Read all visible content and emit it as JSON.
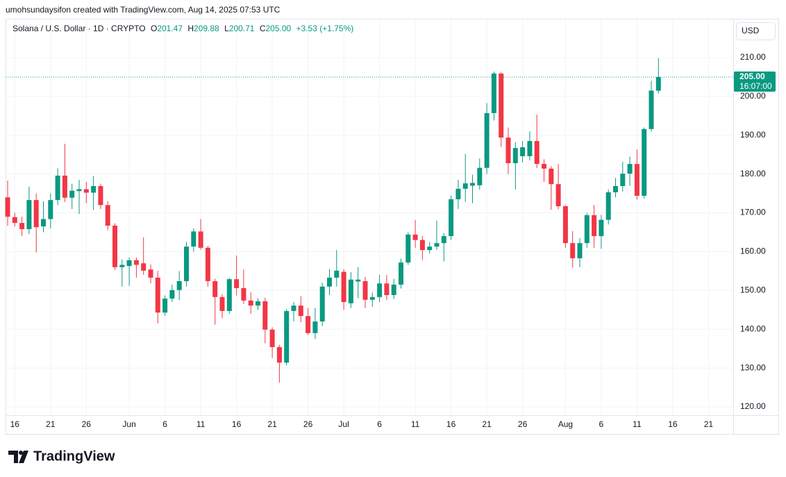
{
  "header": "umohsundaysifon created with TradingView.com, Aug 14, 2025 07:53 UTC",
  "legend": {
    "symbol": "Solana / U.S. Dollar · 1D · CRYPTO",
    "open_label": "O",
    "open": "201.47",
    "high_label": "H",
    "high": "209.88",
    "low_label": "L",
    "low": "200.71",
    "close_label": "C",
    "close": "205.00",
    "change": "+3.53 (+1.75%)"
  },
  "currency": "USD",
  "price_tag": {
    "price": "205.00",
    "countdown": "16:07:00"
  },
  "logo": "TradingView",
  "chart_data": {
    "type": "candlestick",
    "x": [
      "May 15",
      "May 16",
      "May 17",
      "May 18",
      "May 19",
      "May 20",
      "May 21",
      "May 22",
      "May 23",
      "May 24",
      "May 25",
      "May 26",
      "May 27",
      "May 28",
      "May 29",
      "May 30",
      "May 31",
      "Jun 1",
      "Jun 2",
      "Jun 3",
      "Jun 4",
      "Jun 5",
      "Jun 6",
      "Jun 7",
      "Jun 8",
      "Jun 9",
      "Jun 10",
      "Jun 11",
      "Jun 12",
      "Jun 13",
      "Jun 14",
      "Jun 15",
      "Jun 16",
      "Jun 17",
      "Jun 18",
      "Jun 19",
      "Jun 20",
      "Jun 21",
      "Jun 22",
      "Jun 23",
      "Jun 24",
      "Jun 25",
      "Jun 26",
      "Jun 27",
      "Jun 28",
      "Jun 29",
      "Jun 30",
      "Jul 1",
      "Jul 2",
      "Jul 3",
      "Jul 4",
      "Jul 5",
      "Jul 6",
      "Jul 7",
      "Jul 8",
      "Jul 9",
      "Jul 10",
      "Jul 11",
      "Jul 12",
      "Jul 13",
      "Jul 14",
      "Jul 15",
      "Jul 16",
      "Jul 17",
      "Jul 18",
      "Jul 19",
      "Jul 20",
      "Jul 21",
      "Jul 22",
      "Jul 23",
      "Jul 24",
      "Jul 25",
      "Jul 26",
      "Jul 27",
      "Jul 28",
      "Jul 29",
      "Jul 30",
      "Jul 31",
      "Aug 1",
      "Aug 2",
      "Aug 3",
      "Aug 4",
      "Aug 5",
      "Aug 6",
      "Aug 7",
      "Aug 8",
      "Aug 9",
      "Aug 10",
      "Aug 11",
      "Aug 12",
      "Aug 13",
      "Aug 14"
    ],
    "open": [
      174.0,
      168.9,
      167.4,
      165.8,
      173.3,
      166.5,
      168.4,
      173.3,
      179.6,
      173.9,
      175.6,
      176.1,
      175.2,
      176.9,
      172.0,
      166.7,
      156.0,
      156.3,
      157.8,
      157.0,
      155.4,
      153.3,
      144.3,
      147.9,
      150.1,
      152.4,
      161.3,
      165.2,
      161.0,
      152.4,
      148.3,
      144.7,
      152.9,
      150.6,
      147.4,
      146.1,
      147.2,
      139.9,
      135.4,
      131.4,
      144.7,
      146.1,
      143.4,
      139.0,
      142.0,
      151.0,
      153.3,
      154.8,
      146.7,
      152.3,
      152.4,
      147.6,
      148.3,
      151.8,
      148.8,
      151.5,
      157.2,
      164.4,
      163.0,
      160.4,
      161.3,
      162.2,
      164.0,
      173.5,
      176.2,
      177.0,
      177.1,
      181.6,
      195.7,
      205.9,
      189.4,
      182.8,
      184.6,
      184.6,
      188.5,
      182.6,
      181.4,
      177.4,
      171.7,
      162.2,
      158.3,
      162.2,
      169.4,
      164.0,
      168.2,
      175.3,
      176.9,
      180.1,
      182.6,
      174.4,
      191.6,
      201.47
    ],
    "high": [
      178.3,
      170,
      169,
      176.8,
      175,
      173,
      175,
      181.5,
      187.8,
      177.5,
      178.5,
      178,
      179.5,
      177.5,
      173,
      167.3,
      158,
      158.5,
      158.5,
      163.7,
      156.7,
      155,
      148.7,
      151.5,
      155,
      162.5,
      166,
      168.4,
      161.5,
      153,
      149,
      153.3,
      159,
      155.4,
      149.5,
      148,
      148.1,
      140.5,
      136,
      145.2,
      147,
      148.5,
      145.5,
      145.5,
      152,
      155.5,
      160.4,
      155.5,
      154.7,
      156,
      153.5,
      149.5,
      154,
      154,
      153,
      158.2,
      165,
      168.2,
      164,
      162.5,
      168,
      164.8,
      174.5,
      178.5,
      185.2,
      179.8,
      184,
      198.3,
      206.4,
      206.2,
      192,
      188.2,
      188.5,
      191,
      195.3,
      183.8,
      182,
      182.6,
      172,
      165.3,
      163.5,
      170,
      172,
      169.5,
      176,
      179,
      183.2,
      184.5,
      186.3,
      192,
      204,
      209.88
    ],
    "low": [
      166.7,
      166.5,
      164,
      164.5,
      159.8,
      165,
      166,
      172,
      172.8,
      171,
      169.7,
      172.5,
      170.7,
      171,
      165.5,
      155.3,
      151,
      151.2,
      153.3,
      154,
      151.8,
      141.5,
      143.5,
      147,
      147.5,
      151,
      160,
      160.5,
      151,
      141.2,
      142.8,
      144,
      148.7,
      146.5,
      144,
      145,
      136.4,
      132.6,
      126.3,
      130.7,
      142,
      141.8,
      138.5,
      137.5,
      140.8,
      148.8,
      151,
      145,
      145.5,
      148,
      145.5,
      145.8,
      147,
      147.5,
      147.8,
      150.5,
      156.6,
      161,
      157.8,
      159.5,
      160.5,
      157.5,
      163,
      171,
      172.8,
      172.5,
      176,
      180,
      193.8,
      187,
      180,
      176,
      183,
      183.5,
      181.5,
      178,
      170.8,
      170.9,
      161,
      155.9,
      156,
      161,
      161,
      160.7,
      167,
      174,
      175.5,
      177,
      173.4,
      173.7,
      191,
      200.71
    ],
    "close": [
      169.0,
      167.4,
      165.8,
      173.3,
      166.3,
      168.4,
      173.3,
      179.6,
      173.9,
      175.7,
      176.1,
      175.2,
      176.9,
      172.0,
      166.7,
      156.0,
      156.6,
      157.8,
      156.6,
      155.1,
      153.3,
      144.3,
      147.9,
      150.1,
      152.4,
      161.3,
      165.2,
      161.0,
      152.4,
      148.3,
      144.7,
      152.9,
      150.6,
      147.4,
      146.1,
      147.2,
      139.9,
      135.4,
      131.4,
      144.7,
      146.1,
      143.4,
      139.0,
      142.0,
      151.0,
      153.3,
      155.1,
      147.0,
      152.8,
      152.8,
      147.6,
      148.3,
      151.8,
      148.8,
      151.5,
      157.2,
      164.4,
      163.0,
      160.4,
      161.3,
      162.2,
      164.0,
      173.5,
      176.2,
      177.6,
      177.7,
      181.6,
      195.7,
      205.9,
      189.4,
      182.8,
      186.7,
      186.9,
      188.5,
      182.6,
      181.4,
      177.4,
      171.7,
      162.2,
      158.3,
      162.2,
      169.4,
      164.0,
      168.2,
      175.3,
      176.9,
      180.1,
      182.6,
      174.4,
      191.6,
      201.5,
      205.0
    ],
    "up_color": "#089981",
    "down_color": "#f23645",
    "ylim": [
      117.85,
      219.84
    ],
    "yticks": [
      {
        "value": 120,
        "label": "120.00"
      },
      {
        "value": 130,
        "label": "130.00"
      },
      {
        "value": 140,
        "label": "140.00"
      },
      {
        "value": 150,
        "label": "150.00"
      },
      {
        "value": 160,
        "label": "160.00"
      },
      {
        "value": 170,
        "label": "170.00"
      },
      {
        "value": 180,
        "label": "180.00"
      },
      {
        "value": 190,
        "label": "190.00"
      },
      {
        "value": 200,
        "label": "200.00"
      },
      {
        "value": 210,
        "label": "210.00"
      }
    ],
    "xticks": [
      {
        "value": "May 16",
        "label": "16"
      },
      {
        "value": "May 21",
        "label": "21"
      },
      {
        "value": "May 26",
        "label": "26"
      },
      {
        "value": "Jun 1",
        "label": "Jun"
      },
      {
        "value": "Jun 6",
        "label": "6"
      },
      {
        "value": "Jun 11",
        "label": "11"
      },
      {
        "value": "Jun 16",
        "label": "16"
      },
      {
        "value": "Jun 21",
        "label": "21"
      },
      {
        "value": "Jun 26",
        "label": "26"
      },
      {
        "value": "Jul 1",
        "label": "Jul"
      },
      {
        "value": "Jul 6",
        "label": "6"
      },
      {
        "value": "Jul 11",
        "label": "11"
      },
      {
        "value": "Jul 16",
        "label": "16"
      },
      {
        "value": "Jul 21",
        "label": "21"
      },
      {
        "value": "Jul 26",
        "label": "26"
      },
      {
        "value": "Aug 1",
        "label": "Aug"
      },
      {
        "value": "Aug 6",
        "label": "6"
      },
      {
        "value": "Aug 11",
        "label": "11"
      },
      {
        "value": "Aug 16",
        "label": "16"
      },
      {
        "value": "Aug 21",
        "label": "21"
      }
    ],
    "grid": true
  }
}
